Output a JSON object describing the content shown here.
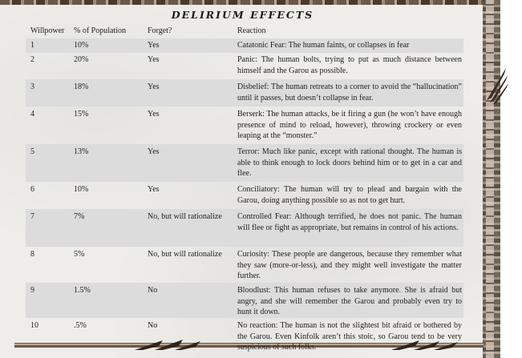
{
  "title": "DELIRIUM EFFECTS",
  "headers": {
    "willpower": "Willpower",
    "population": "% of Population",
    "forget": "Forget?",
    "reaction": "Reaction"
  },
  "rows": [
    {
      "willpower": "1",
      "population": "10%",
      "forget": "Yes",
      "reaction": "Catatonic Fear: The human faints, or collapses in fear"
    },
    {
      "willpower": "2",
      "population": "20%",
      "forget": "Yes",
      "reaction": "Panic: The human bolts, trying to put as much distance between himself and the Garou as possible."
    },
    {
      "willpower": "3",
      "population": "18%",
      "forget": "Yes",
      "reaction": "Disbelief: The human retreats to a corner to avoid the “hallucination” until it passes, but doesn’t collapse in fear."
    },
    {
      "willpower": "4",
      "population": "15%",
      "forget": "Yes",
      "reaction": "Berserk: The human attacks, be it firing a gun (he won’t have enough presence of mind to reload, however), throwing crockery or even leaping at the “monster.”"
    },
    {
      "willpower": "5",
      "population": "13%",
      "forget": "Yes",
      "reaction": "Terror: Much like panic, except with rational thought. The human is able to think enough to lock doors behind him or to get in a car and flee."
    },
    {
      "willpower": "6",
      "population": "10%",
      "forget": "Yes",
      "reaction": "Conciliatory: The human will try to plead and bargain with the Garou, doing anything possible so as not to get hurt."
    },
    {
      "willpower": "7",
      "population": "7%",
      "forget": "No, but will rationalize",
      "reaction": "Controlled Fear: Although terrified, he does not panic. The human will flee or fight as appropriate, but remains in control of his actions."
    },
    {
      "willpower": "8",
      "population": "5%",
      "forget": "No, but will rationalize",
      "reaction": "Curiosity: These people are dangerous, because they remember what they saw (more-or-less), and they might well investigate the matter further."
    },
    {
      "willpower": "9",
      "population": "1.5%",
      "forget": "No",
      "reaction": "Bloodlust: This human refuses to take anymore. She is afraid but angry, and she will remember the Garou and probably even try to hunt it down."
    },
    {
      "willpower": "10",
      "population": ".5%",
      "forget": "No",
      "reaction": "No reaction: The human is not the slightest bit afraid or bothered by the Garou. Even Kinfolk aren’t this stoic, so Garou tend to be very suspicious of such folks."
    }
  ]
}
